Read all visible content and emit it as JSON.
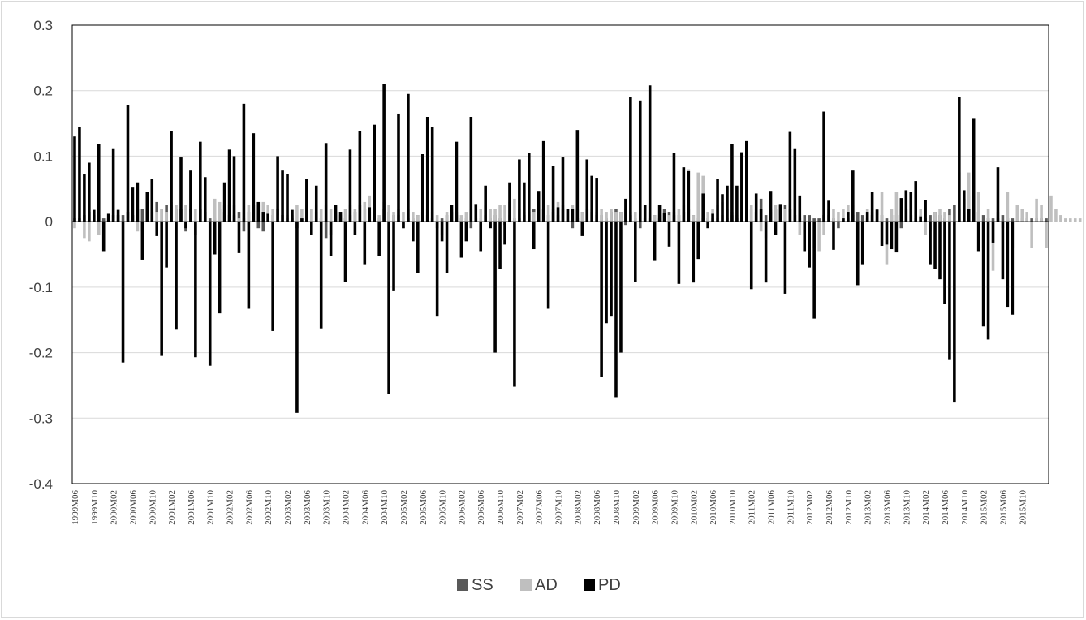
{
  "chart_data": {
    "type": "bar",
    "title": "",
    "xlabel": "",
    "ylabel": "",
    "ylim": [
      -0.4,
      0.3
    ],
    "yticks": [
      0.3,
      0.2,
      0.1,
      0,
      -0.1,
      -0.2,
      -0.3,
      -0.4
    ],
    "ytick_labels": [
      "0.3",
      "0.2",
      "0.1",
      "0",
      "-0.1",
      "-0.2",
      "-0.3",
      "-0.4"
    ],
    "grid": true,
    "legend_position": "bottom",
    "start_period": "1999M06",
    "end_period": "2015M12",
    "xtick_labels": [
      "1999M06",
      "1999M10",
      "2000M02",
      "2000M06",
      "2000M10",
      "2001M02",
      "2001M06",
      "2001M10",
      "2002M02",
      "2002M06",
      "2002M10",
      "2003M02",
      "2003M06",
      "2003M10",
      "2004M02",
      "2004M06",
      "2004M10",
      "2005M02",
      "2005M06",
      "2005M10",
      "2006M02",
      "2006M06",
      "2006M10",
      "2007M02",
      "2007M06",
      "2007M10",
      "2008M02",
      "2008M06",
      "2008M10",
      "2009M02",
      "2009M06",
      "2009M10",
      "2010M02",
      "2010M06",
      "2010M10",
      "2011M02",
      "2011M06",
      "2011M10",
      "2012M02",
      "2012M06",
      "2012M10",
      "2013M02",
      "2013M06",
      "2013M10",
      "2014M02",
      "2014M06",
      "2014M10",
      "2015M02",
      "2015M06",
      "2015M10"
    ],
    "series": [
      {
        "name": "SS",
        "color": "#595959",
        "values": [
          0.005,
          0.005,
          0.01,
          0.015,
          0.01,
          0.01,
          0.005,
          0.005,
          0.01,
          0.01,
          0.01,
          0.015,
          0.01,
          0.02,
          0.02,
          0.02,
          0.015,
          0.03,
          0.02,
          0.025,
          0.025,
          0.02,
          0.02,
          -0.015,
          0.02,
          -0.02,
          0.02,
          0.015,
          0.005,
          0.005,
          0.02,
          0.015,
          0.01,
          0.01,
          0.015,
          -0.015,
          0.015,
          0.025,
          -0.01,
          -0.015,
          0.015,
          0.01,
          0.02,
          0.01,
          0.005,
          0.005,
          -0.01,
          0.005,
          0.01,
          0.02,
          0.015,
          0.005,
          -0.025,
          -0.02,
          0.015,
          0.01,
          0.005,
          0.01,
          0.015,
          0.025,
          0.02,
          0.015,
          0.01,
          0.005,
          0.02,
          0.015,
          0.01,
          0.01,
          -0.01,
          0.005,
          0.005,
          0.01,
          0.015,
          0.01,
          0.005,
          -0.01,
          0.005,
          0.01,
          0.015,
          0.01,
          0.005,
          0.005,
          -0.01,
          0.005,
          0.005,
          0.01,
          0.005,
          0.01,
          0.005,
          -0.005,
          0.01,
          0.005,
          0.005,
          0.01,
          0.015,
          0.02,
          0.025,
          0.02,
          0.01,
          0.015,
          0.01,
          0.02,
          0.02,
          -0.01,
          0.005,
          0.015,
          0.02,
          0.015,
          0.01,
          0.01,
          0.005,
          0.015,
          0.02,
          0.015,
          -0.005,
          0.01,
          0.005,
          -0.01,
          0.005,
          0.005,
          0.01,
          0.005,
          0.02,
          0.015,
          0.01,
          0.01,
          0.015,
          0.02,
          0.01,
          0.005,
          0.005,
          0.005,
          0.005,
          0.005,
          0.01,
          0.005,
          0.01,
          0.005,
          0.005,
          0.02,
          0.02,
          0.015,
          0.035,
          0.01,
          0.015,
          0.02,
          0.025,
          0.025,
          0.02,
          0.01,
          0.005,
          0.01,
          0.01,
          0.005,
          0.005,
          0.01,
          0.01,
          0.005,
          -0.01,
          0.005,
          0.005,
          0.01,
          0.015,
          0.01,
          0.005,
          0.01,
          0.02,
          0.01,
          0.005,
          0.01,
          0.01,
          -0.01,
          0.02,
          0.01,
          0.005,
          0.01,
          0.005,
          0.01,
          0.015,
          0.01,
          0.005,
          0.02,
          0.025,
          0.02,
          0.035,
          0.04,
          0.02,
          0.015,
          0.01,
          0.005,
          0.005,
          0.005,
          0.01,
          0.005,
          0.005,
          0.005,
          0.005,
          0.005,
          0.005,
          0.005,
          0.005,
          0.005
        ]
      },
      {
        "name": "AD",
        "color": "#bfbfbf",
        "values": [
          -0.01,
          0.0,
          -0.025,
          -0.03,
          0.0,
          -0.02,
          0.0,
          0.0,
          0.005,
          0.0,
          0.0,
          0.005,
          0.01,
          -0.015,
          -0.015,
          0.02,
          0.02,
          0.015,
          0.02,
          0.015,
          0.03,
          0.025,
          0.02,
          0.025,
          0.015,
          0.02,
          0.02,
          0.015,
          0.0,
          0.035,
          0.03,
          0.025,
          0.025,
          0.025,
          0.005,
          0.005,
          0.025,
          0.02,
          0.025,
          0.03,
          0.025,
          0.02,
          0.01,
          0.01,
          0.01,
          0.01,
          0.025,
          0.02,
          0.025,
          0.02,
          0.025,
          0.02,
          0.025,
          0.02,
          0.015,
          0.015,
          0.02,
          0.025,
          0.02,
          0.02,
          0.03,
          0.04,
          0.035,
          0.01,
          0.03,
          0.025,
          0.015,
          0.02,
          0.015,
          0.02,
          0.015,
          0.01,
          0.015,
          0.02,
          0.015,
          0.01,
          -0.02,
          0.015,
          0.02,
          0.015,
          0.01,
          0.015,
          0.02,
          0.02,
          0.02,
          0.025,
          0.02,
          0.02,
          0.025,
          0.025,
          0.03,
          0.035,
          0.02,
          0.015,
          0.01,
          0.015,
          0.02,
          0.02,
          0.025,
          0.02,
          0.03,
          0.025,
          0.02,
          0.025,
          0.02,
          0.015,
          0.02,
          0.02,
          0.015,
          0.02,
          0.015,
          0.02,
          0.015,
          0.015,
          0.02,
          0.015,
          0.015,
          0.02,
          0.02,
          0.015,
          0.01,
          0.01,
          0.005,
          0.01,
          0.015,
          0.02,
          0.025,
          0.08,
          0.01,
          0.075,
          0.07,
          0.015,
          0.02,
          0.025,
          0.03,
          0.02,
          0.015,
          0.01,
          0.015,
          0.02,
          0.025,
          0.02,
          -0.015,
          -0.025,
          0.02,
          0.025,
          0.01,
          0.02,
          0.015,
          0.01,
          -0.02,
          -0.045,
          -0.03,
          -0.04,
          -0.045,
          -0.02,
          0.02,
          0.02,
          0.015,
          0.02,
          0.025,
          0.025,
          -0.07,
          -0.065,
          0.02,
          0.015,
          0.01,
          0.045,
          -0.065,
          0.02,
          0.045,
          0.02,
          0.015,
          0.01,
          0.015,
          0.02,
          -0.02,
          -0.015,
          0.015,
          0.02,
          0.015,
          0.01,
          -0.005,
          0.075,
          0.015,
          0.075,
          0.04,
          0.045,
          -0.04,
          0.02,
          -0.075,
          0.015,
          -0.01,
          0.045,
          -0.04,
          0.025,
          0.02,
          0.015,
          -0.04,
          0.035,
          0.025,
          -0.04,
          0.04,
          0.02,
          0.01,
          0.005,
          0.005,
          0.005,
          0.005
        ]
      },
      {
        "name": "PD",
        "color": "#000000",
        "values": [
          0.13,
          0.145,
          0.072,
          0.09,
          0.018,
          0.118,
          -0.045,
          0.012,
          0.112,
          0.018,
          -0.215,
          0.178,
          0.052,
          0.06,
          -0.058,
          0.045,
          0.065,
          -0.022,
          -0.205,
          -0.07,
          0.138,
          -0.165,
          0.098,
          -0.01,
          0.078,
          -0.207,
          0.122,
          0.068,
          -0.22,
          -0.05,
          -0.14,
          0.06,
          0.11,
          0.1,
          -0.048,
          0.18,
          -0.133,
          0.135,
          0.03,
          0.015,
          0.012,
          -0.167,
          0.1,
          0.078,
          0.073,
          0.018,
          -0.292,
          0.005,
          0.065,
          -0.02,
          0.055,
          -0.163,
          0.12,
          -0.052,
          0.025,
          0.015,
          -0.092,
          0.11,
          -0.02,
          0.138,
          -0.065,
          0.022,
          0.148,
          -0.053,
          0.21,
          -0.263,
          -0.105,
          0.165,
          -0.01,
          0.195,
          -0.03,
          -0.078,
          0.103,
          0.16,
          0.145,
          -0.145,
          -0.03,
          -0.078,
          0.025,
          0.122,
          -0.055,
          -0.03,
          0.16,
          0.027,
          -0.045,
          0.055,
          -0.01,
          -0.2,
          -0.072,
          -0.035,
          0.06,
          -0.252,
          0.095,
          0.06,
          0.105,
          -0.042,
          0.047,
          0.123,
          -0.133,
          0.085,
          0.022,
          0.098,
          0.02,
          0.02,
          0.14,
          -0.022,
          0.095,
          0.07,
          0.067,
          -0.237,
          -0.155,
          -0.145,
          -0.268,
          -0.2,
          0.035,
          0.19,
          -0.092,
          0.185,
          0.025,
          0.208,
          -0.06,
          0.025,
          0.013,
          -0.038,
          0.105,
          -0.095,
          0.083,
          0.077,
          -0.093,
          -0.057,
          0.043,
          -0.01,
          0.012,
          0.065,
          0.042,
          0.055,
          0.118,
          0.055,
          0.106,
          0.123,
          -0.103,
          0.043,
          0.02,
          -0.093,
          0.047,
          -0.02,
          0.027,
          -0.11,
          0.137,
          0.112,
          0.04,
          -0.045,
          -0.07,
          -0.148,
          0.0,
          0.168,
          0.032,
          -0.043,
          0.0,
          0.005,
          0.015,
          0.078,
          -0.097,
          -0.065,
          0.015,
          0.045,
          0.018,
          -0.037,
          -0.035,
          -0.042,
          -0.047,
          0.036,
          0.048,
          0.045,
          0.062,
          0.008,
          0.033,
          -0.065,
          -0.072,
          -0.088,
          -0.125,
          -0.21,
          -0.275,
          0.19,
          0.048,
          0.02,
          0.157,
          -0.045,
          -0.16,
          -0.18,
          -0.032,
          0.083,
          -0.088,
          -0.13,
          -0.142
        ]
      }
    ]
  }
}
